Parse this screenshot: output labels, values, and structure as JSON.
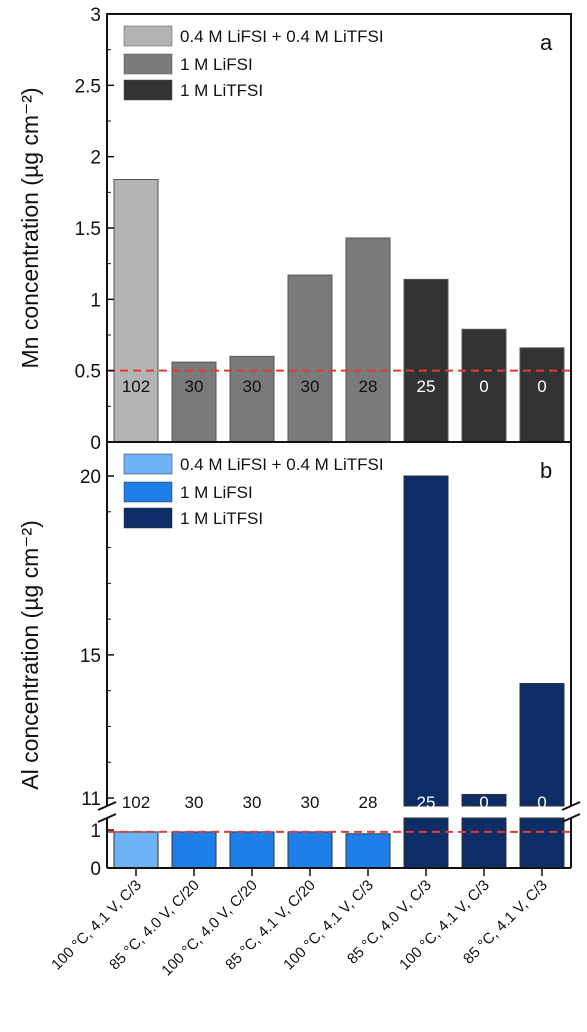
{
  "chart_data": [
    {
      "type": "bar",
      "panel_label": "a",
      "ylabel": "Mn concentration (µg cm⁻²)",
      "ylim": [
        0,
        3
      ],
      "yticks": [
        "0",
        "0.5",
        "1",
        "1.5",
        "2",
        "2.5",
        "3"
      ],
      "categories": [
        "100 °C, 4.1 V, C/3",
        "85 °C, 4.0 V, C/20",
        "100 °C, 4.0 V, C/20",
        "85 °C, 4.1 V, C/20",
        "100 °C, 4.1 V, C/3",
        "85 °C, 4.0 V, C/3",
        "100 °C, 4.1 V, C/3",
        "85 °C, 4.1 V, C/3"
      ],
      "values": [
        1.84,
        0.56,
        0.6,
        1.17,
        1.43,
        1.14,
        0.79,
        0.66
      ],
      "bar_labels": [
        "102",
        "30",
        "30",
        "30",
        "28",
        "25",
        "0",
        "0"
      ],
      "bar_series": [
        0,
        1,
        1,
        1,
        1,
        2,
        2,
        2
      ],
      "series": [
        {
          "name": "0.4 M LiFSI + 0.4 M LiTFSI",
          "color": "#b3b3b3"
        },
        {
          "name": "1 M LiFSI",
          "color": "#7a7a7a"
        },
        {
          "name": "1 M LiTFSI",
          "color": "#333333"
        }
      ],
      "reference_line": {
        "y": 0.5,
        "color": "#e53935",
        "style": "dashed"
      }
    },
    {
      "type": "bar",
      "panel_label": "b",
      "ylabel": "Al concentration (µg cm⁻²)",
      "axis_break": [
        1,
        11
      ],
      "yticks": [
        "0",
        "1",
        "11",
        "15",
        "20"
      ],
      "categories": [
        "100 °C, 4.1 V, C/3",
        "85 °C, 4.0 V, C/20",
        "100 °C, 4.0 V, C/20",
        "85 °C, 4.1 V, C/20",
        "100 °C, 4.1 V, C/3",
        "85 °C, 4.0 V, C/3",
        "100 °C, 4.1 V, C/3",
        "85 °C, 4.1 V, C/3"
      ],
      "values": [
        0.95,
        0.95,
        0.95,
        0.95,
        0.9,
        20.0,
        11.1,
        14.2
      ],
      "bar_labels": [
        "102",
        "30",
        "30",
        "30",
        "28",
        "25",
        "0",
        "0"
      ],
      "bar_series": [
        0,
        1,
        1,
        1,
        1,
        2,
        2,
        2
      ],
      "series": [
        {
          "name": "0.4 M LiFSI + 0.4 M LiTFSI",
          "color": "#6fb3f7"
        },
        {
          "name": "1 M LiFSI",
          "color": "#1f7fe8"
        },
        {
          "name": "1 M LiTFSI",
          "color": "#0d2d66"
        }
      ],
      "reference_line": {
        "y": 0.95,
        "color": "#e53935",
        "style": "dashed"
      }
    }
  ]
}
